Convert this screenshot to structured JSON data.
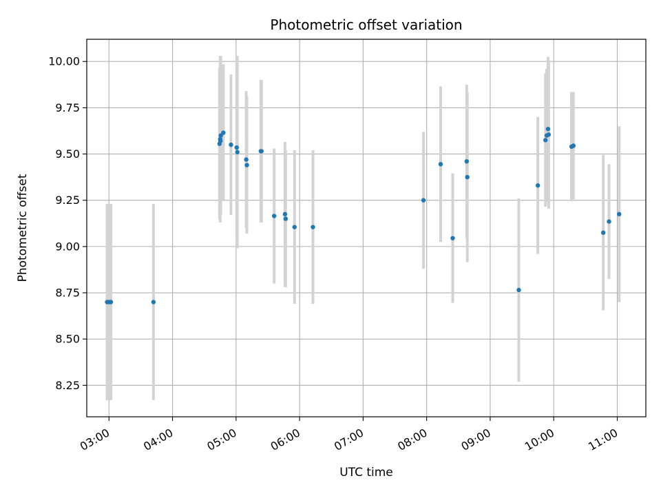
{
  "chart_data": {
    "type": "scatter",
    "title": "Photometric offset variation",
    "xlabel": "UTC time",
    "ylabel": "Photometric offset",
    "grid": true,
    "x_unit": "hours",
    "xlim": [
      2.65,
      11.45
    ],
    "ylim": [
      8.08,
      10.12
    ],
    "x_ticks": [
      {
        "value": 3,
        "label": "03:00"
      },
      {
        "value": 4,
        "label": "04:00"
      },
      {
        "value": 5,
        "label": "05:00"
      },
      {
        "value": 6,
        "label": "06:00"
      },
      {
        "value": 7,
        "label": "07:00"
      },
      {
        "value": 8,
        "label": "08:00"
      },
      {
        "value": 9,
        "label": "09:00"
      },
      {
        "value": 10,
        "label": "10:00"
      },
      {
        "value": 11,
        "label": "11:00"
      }
    ],
    "y_ticks": [
      {
        "value": 8.25,
        "label": "8.25"
      },
      {
        "value": 8.5,
        "label": "8.50"
      },
      {
        "value": 8.75,
        "label": "8.75"
      },
      {
        "value": 9.0,
        "label": "9.00"
      },
      {
        "value": 9.25,
        "label": "9.25"
      },
      {
        "value": 9.5,
        "label": "9.50"
      },
      {
        "value": 9.75,
        "label": "9.75"
      },
      {
        "value": 10.0,
        "label": "10.00"
      }
    ],
    "point_color": "#1f77b4",
    "errorbar_color": "#d3d3d3",
    "points": [
      {
        "x": 2.97,
        "y": 8.7,
        "err": 0.53
      },
      {
        "x": 2.99,
        "y": 8.7,
        "err": 0.53
      },
      {
        "x": 3.01,
        "y": 8.7,
        "err": 0.53
      },
      {
        "x": 3.03,
        "y": 8.7,
        "err": 0.53
      },
      {
        "x": 3.7,
        "y": 8.7,
        "err": 0.53
      },
      {
        "x": 4.74,
        "y": 9.555,
        "err": 0.41
      },
      {
        "x": 4.75,
        "y": 9.58,
        "err": 0.45
      },
      {
        "x": 4.755,
        "y": 9.57,
        "err": 0.39
      },
      {
        "x": 4.76,
        "y": 9.6,
        "err": 0.43
      },
      {
        "x": 4.8,
        "y": 9.615,
        "err": 0.37
      },
      {
        "x": 4.92,
        "y": 9.55,
        "err": 0.38
      },
      {
        "x": 5.01,
        "y": 9.535,
        "err": 0.49
      },
      {
        "x": 5.02,
        "y": 9.51,
        "err": 0.52
      },
      {
        "x": 5.16,
        "y": 9.47,
        "err": 0.37
      },
      {
        "x": 5.17,
        "y": 9.44,
        "err": 0.37
      },
      {
        "x": 5.39,
        "y": 9.515,
        "err": 0.385
      },
      {
        "x": 5.4,
        "y": 9.515,
        "err": 0.385
      },
      {
        "x": 5.6,
        "y": 9.165,
        "err": 0.365
      },
      {
        "x": 5.77,
        "y": 9.175,
        "err": 0.39
      },
      {
        "x": 5.78,
        "y": 9.15,
        "err": 0.37
      },
      {
        "x": 5.92,
        "y": 9.105,
        "err": 0.415
      },
      {
        "x": 6.21,
        "y": 9.105,
        "err": 0.415
      },
      {
        "x": 7.95,
        "y": 9.25,
        "err": 0.37
      },
      {
        "x": 8.22,
        "y": 9.445,
        "err": 0.42
      },
      {
        "x": 8.41,
        "y": 9.045,
        "err": 0.35
      },
      {
        "x": 8.63,
        "y": 9.46,
        "err": 0.415
      },
      {
        "x": 8.64,
        "y": 9.375,
        "err": 0.46
      },
      {
        "x": 9.45,
        "y": 8.765,
        "err": 0.495
      },
      {
        "x": 9.75,
        "y": 9.33,
        "err": 0.37
      },
      {
        "x": 9.87,
        "y": 9.575,
        "err": 0.36
      },
      {
        "x": 9.89,
        "y": 9.6,
        "err": 0.36
      },
      {
        "x": 9.91,
        "y": 9.635,
        "err": 0.39
      },
      {
        "x": 9.92,
        "y": 9.605,
        "err": 0.4
      },
      {
        "x": 10.28,
        "y": 9.54,
        "err": 0.295
      },
      {
        "x": 10.31,
        "y": 9.545,
        "err": 0.29
      },
      {
        "x": 10.78,
        "y": 9.075,
        "err": 0.42
      },
      {
        "x": 10.87,
        "y": 9.135,
        "err": 0.31
      },
      {
        "x": 11.03,
        "y": 9.175,
        "err": 0.475
      }
    ]
  }
}
